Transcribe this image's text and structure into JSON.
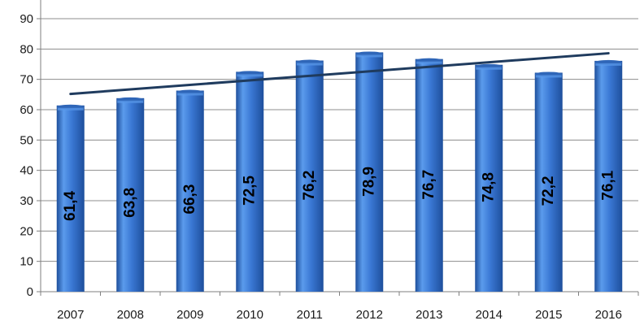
{
  "chart_data": {
    "type": "bar",
    "categories": [
      "2007",
      "2008",
      "2009",
      "2010",
      "2011",
      "2012",
      "2013",
      "2014",
      "2015",
      "2016"
    ],
    "values": [
      61.4,
      63.8,
      66.3,
      72.5,
      76.2,
      78.9,
      76.7,
      74.8,
      72.2,
      76.1
    ],
    "data_labels": [
      "61,4",
      "63,8",
      "66,3",
      "72,5",
      "76,2",
      "78,9",
      "76,7",
      "74,8",
      "72,2",
      "76,1"
    ],
    "yticks": [
      "0",
      "10",
      "20",
      "30",
      "40",
      "50",
      "60",
      "70",
      "80",
      "90"
    ],
    "ylim": [
      0,
      90
    ],
    "title": "",
    "xlabel": "",
    "ylabel": "",
    "grid": true,
    "legend": false,
    "trendline": {
      "type": "linear",
      "start": 65.2,
      "end": 78.6
    },
    "colors": {
      "bar_light": "#5b9bec",
      "bar_mid": "#3a78d4",
      "bar_dark": "#1e4f9c",
      "bar_top": "#2f66b8",
      "trendline": "#1f3b5e",
      "grid": "#8c8c8c",
      "axis": "#7f7f7f"
    }
  }
}
